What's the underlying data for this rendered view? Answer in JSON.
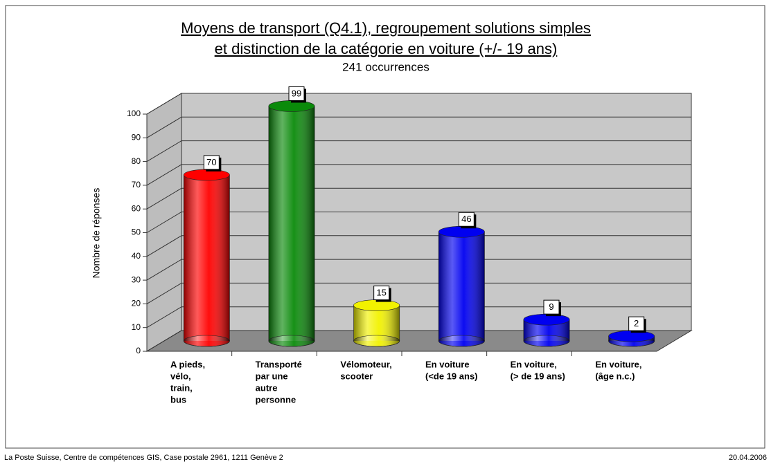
{
  "chart_data": {
    "type": "bar",
    "title": [
      "Moyens de transport (Q4.1), regroupement solutions simples",
      "et distinction de la catégorie en voiture (+/- 19 ans)"
    ],
    "subtitle": "241 occurrences",
    "y_label": "Nombre de réponses",
    "categories": [
      [
        "A pieds,",
        "vélo,",
        "train,",
        "bus"
      ],
      [
        "Transporté",
        "par une",
        "autre",
        "personne"
      ],
      [
        "Vélomoteur,",
        "scooter"
      ],
      [
        "En voiture",
        "(<de 19 ans)"
      ],
      [
        "En voiture,",
        "(> de 19 ans)"
      ],
      [
        "En voiture,",
        "(âge n.c.)"
      ]
    ],
    "values": [
      70,
      99,
      15,
      46,
      9,
      2
    ],
    "colors": [
      "#ff0000",
      "#0a8a0a",
      "#f2f200",
      "#0000f0",
      "#0000f0",
      "#0000f0"
    ],
    "ylim": [
      0,
      100
    ],
    "yticks": [
      0,
      10,
      20,
      30,
      40,
      50,
      60,
      70,
      80,
      90,
      100
    ],
    "grid": true
  },
  "footer": {
    "left": "La Poste Suisse, Centre de compétences GIS, Case postale 2961, 1211 Genève 2",
    "right": "20.04.2006"
  }
}
